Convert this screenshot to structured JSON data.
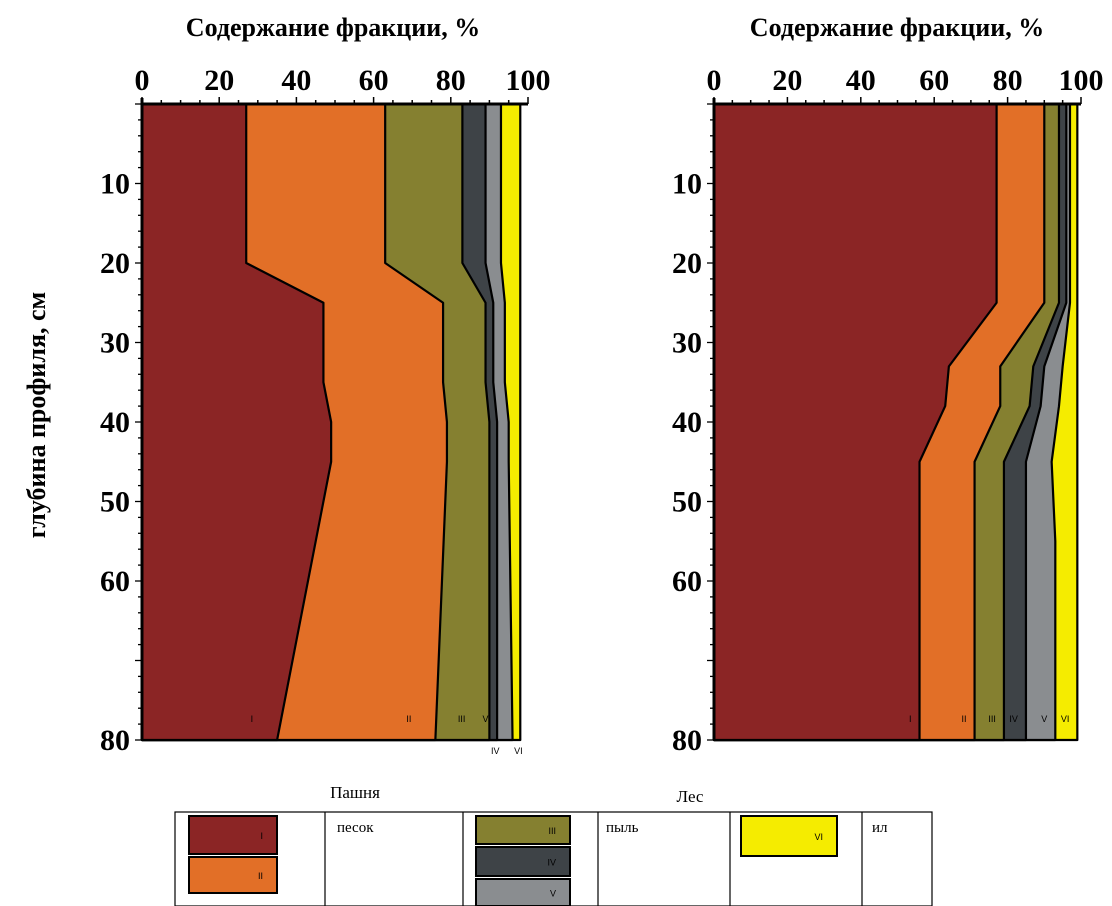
{
  "ylabel": "глубина профиля, см",
  "legend": {
    "groups": [
      {
        "label": "песок",
        "fractions": [
          "I",
          "II"
        ]
      },
      {
        "label": "пыль",
        "fractions": [
          "III",
          "IV",
          "V"
        ]
      },
      {
        "label": "ил",
        "fractions": [
          "VI"
        ]
      }
    ]
  },
  "chart_data": [
    {
      "type": "area",
      "title": "Содержание фракции, %",
      "caption": "Пашня",
      "ylabel": "глубина профиля, см",
      "xlim": [
        0,
        100
      ],
      "ylim": [
        0,
        80
      ],
      "x_ticks": [
        0,
        20,
        40,
        60,
        80,
        100
      ],
      "y_ticks": [
        10,
        20,
        30,
        40,
        50,
        60,
        80
      ],
      "depth": [
        0,
        20,
        25,
        35,
        40,
        45,
        70
      ],
      "cumulative": [
        {
          "name": "I",
          "color": "#8b2525",
          "values": [
            27,
            27,
            47,
            47,
            49,
            49,
            35
          ]
        },
        {
          "name": "II",
          "color": "#e26f27",
          "values": [
            63,
            63,
            78,
            78,
            79,
            79,
            76
          ]
        },
        {
          "name": "III",
          "color": "#858030",
          "values": [
            83,
            83,
            89,
            89,
            90,
            90,
            90
          ]
        },
        {
          "name": "IV",
          "color": "#3e4347",
          "values": [
            89,
            89,
            91,
            91,
            92,
            92,
            92
          ]
        },
        {
          "name": "V",
          "color": "#8a8d90",
          "values": [
            93,
            93,
            94,
            94,
            95,
            95,
            96
          ]
        },
        {
          "name": "VI",
          "color": "#f5ec00",
          "values": [
            98,
            98,
            98,
            98,
            98,
            98,
            98
          ]
        }
      ],
      "fraction_labels_inside": [
        "I",
        "II",
        "III",
        "V"
      ],
      "fraction_labels_below": [
        "IV",
        "VI"
      ]
    },
    {
      "type": "area",
      "title": "Содержание фракции, %",
      "caption": "Лес",
      "xlim": [
        0,
        100
      ],
      "ylim": [
        0,
        80
      ],
      "x_ticks": [
        0,
        20,
        40,
        60,
        80,
        100
      ],
      "y_ticks": [
        10,
        20,
        30,
        40,
        50,
        60,
        80
      ],
      "depth": [
        0,
        25,
        33,
        38,
        45,
        55,
        70
      ],
      "cumulative": [
        {
          "name": "I",
          "color": "#8b2525",
          "values": [
            77,
            77,
            64,
            63,
            56,
            56,
            56
          ]
        },
        {
          "name": "II",
          "color": "#e26f27",
          "values": [
            90,
            90,
            78,
            78,
            71,
            71,
            71
          ]
        },
        {
          "name": "III",
          "color": "#858030",
          "values": [
            94,
            94,
            87,
            86,
            79,
            79,
            79
          ]
        },
        {
          "name": "IV",
          "color": "#3e4347",
          "values": [
            96,
            96,
            90,
            89,
            85,
            85,
            85
          ]
        },
        {
          "name": "V",
          "color": "#8a8d90",
          "values": [
            97,
            97,
            95,
            94,
            92,
            93,
            93
          ]
        },
        {
          "name": "VI",
          "color": "#f5ec00",
          "values": [
            99,
            99,
            99,
            99,
            99,
            99,
            99
          ]
        }
      ],
      "fraction_labels_inside": [
        "I",
        "II",
        "III",
        "IV",
        "V",
        "VI"
      ],
      "fraction_labels_below": []
    }
  ]
}
